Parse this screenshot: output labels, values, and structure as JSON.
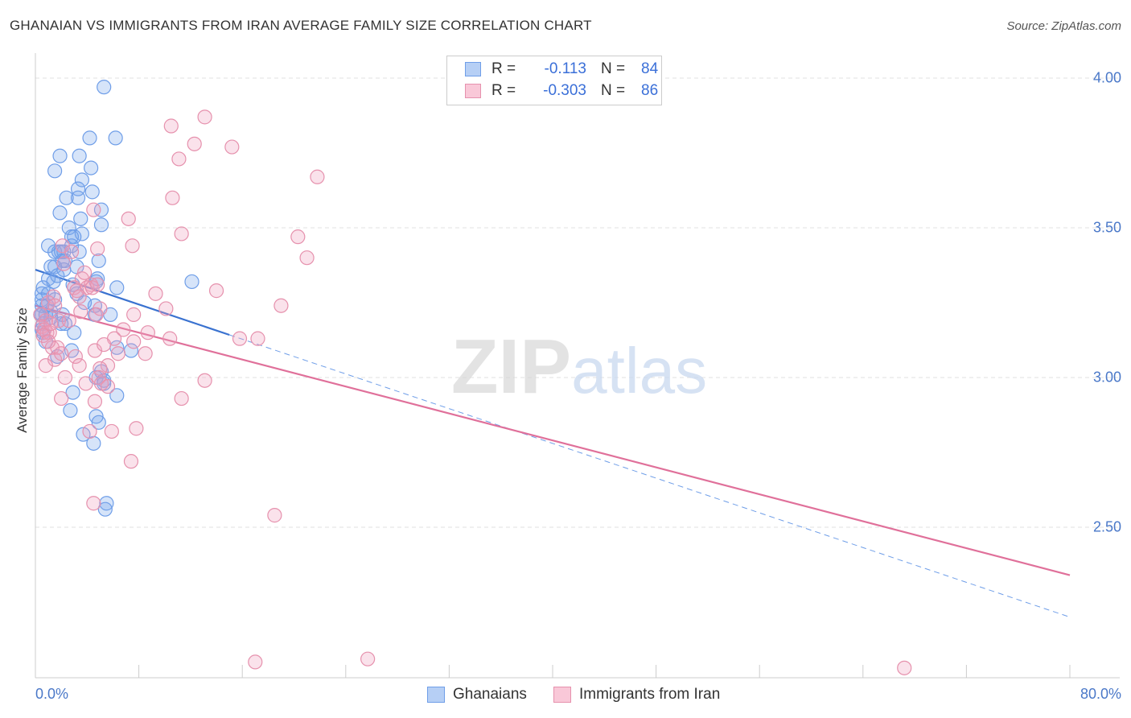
{
  "chart_data": {
    "type": "scatter",
    "title": "GHANAIAN VS IMMIGRANTS FROM IRAN AVERAGE FAMILY SIZE CORRELATION CHART",
    "source": "Source: ZipAtlas.com",
    "xlabel": "",
    "ylabel": "Average Family Size",
    "xlim": [
      0,
      80
    ],
    "ylim": [
      2.0,
      4.15
    ],
    "x_tick_labels": {
      "min": "0.0%",
      "max": "80.0%"
    },
    "y_ticks": [
      {
        "value": 4.0,
        "label": "4.00"
      },
      {
        "value": 3.5,
        "label": "3.50"
      },
      {
        "value": 3.0,
        "label": "3.00"
      },
      {
        "value": 2.5,
        "label": "2.50"
      }
    ],
    "grid": true,
    "watermark": "ZIPatlas",
    "legend": {
      "placement": "top-center",
      "entries": [
        {
          "r_label": "R =",
          "r_value": "-0.113",
          "n_label": "N =",
          "n_value": "84"
        },
        {
          "r_label": "R =",
          "r_value": "-0.303",
          "n_label": "N =",
          "n_value": "86"
        }
      ]
    },
    "series": [
      {
        "name": "Ghanaians",
        "color": "#6f9ee8",
        "fill": "rgba(120,165,235,0.30)",
        "trend": {
          "solid_x": [
            0,
            15
          ],
          "x": [
            0,
            80
          ],
          "y": [
            3.36,
            2.2
          ]
        },
        "points": [
          [
            5.3,
            3.97
          ],
          [
            4.2,
            3.8
          ],
          [
            6.2,
            3.8
          ],
          [
            1.9,
            3.74
          ],
          [
            3.4,
            3.74
          ],
          [
            1.5,
            3.69
          ],
          [
            4.3,
            3.7
          ],
          [
            3.6,
            3.66
          ],
          [
            4.4,
            3.62
          ],
          [
            3.3,
            3.63
          ],
          [
            3.3,
            3.6
          ],
          [
            2.4,
            3.6
          ],
          [
            5.1,
            3.56
          ],
          [
            1.9,
            3.55
          ],
          [
            3.5,
            3.53
          ],
          [
            5.1,
            3.51
          ],
          [
            2.6,
            3.5
          ],
          [
            3.6,
            3.48
          ],
          [
            2.8,
            3.47
          ],
          [
            3.0,
            3.47
          ],
          [
            2.8,
            3.44
          ],
          [
            1.0,
            3.44
          ],
          [
            3.4,
            3.42
          ],
          [
            1.5,
            3.42
          ],
          [
            1.8,
            3.42
          ],
          [
            2.0,
            3.42
          ],
          [
            2.2,
            3.42
          ],
          [
            2.1,
            3.39
          ],
          [
            2.3,
            3.39
          ],
          [
            4.9,
            3.39
          ],
          [
            1.2,
            3.37
          ],
          [
            1.5,
            3.37
          ],
          [
            3.2,
            3.37
          ],
          [
            2.2,
            3.36
          ],
          [
            1.0,
            3.33
          ],
          [
            1.7,
            3.34
          ],
          [
            4.8,
            3.33
          ],
          [
            1.4,
            3.32
          ],
          [
            4.7,
            3.32
          ],
          [
            12.1,
            3.32
          ],
          [
            6.3,
            3.3
          ],
          [
            0.5,
            3.28
          ],
          [
            3.2,
            3.28
          ],
          [
            0.5,
            3.26
          ],
          [
            1.5,
            3.26
          ],
          [
            0.5,
            3.24
          ],
          [
            0.9,
            3.24
          ],
          [
            4.6,
            3.24
          ],
          [
            1.2,
            3.22
          ],
          [
            0.5,
            3.21
          ],
          [
            0.8,
            3.21
          ],
          [
            0.4,
            3.21
          ],
          [
            2.1,
            3.21
          ],
          [
            1.2,
            3.2
          ],
          [
            4.6,
            3.21
          ],
          [
            5.8,
            3.21
          ],
          [
            0.6,
            3.18
          ],
          [
            2.0,
            3.18
          ],
          [
            2.3,
            3.18
          ],
          [
            0.5,
            3.16
          ],
          [
            0.6,
            3.15
          ],
          [
            3.0,
            3.15
          ],
          [
            0.8,
            3.12
          ],
          [
            6.3,
            3.1
          ],
          [
            7.4,
            3.09
          ],
          [
            2.8,
            3.09
          ],
          [
            1.7,
            3.07
          ],
          [
            5.1,
            3.02
          ],
          [
            4.7,
            3.0
          ],
          [
            5.3,
            2.99
          ],
          [
            5.3,
            2.98
          ],
          [
            6.3,
            2.94
          ],
          [
            2.9,
            2.95
          ],
          [
            2.7,
            2.89
          ],
          [
            4.7,
            2.87
          ],
          [
            4.9,
            2.85
          ],
          [
            3.7,
            2.81
          ],
          [
            4.5,
            2.78
          ],
          [
            5.5,
            2.58
          ],
          [
            5.4,
            2.56
          ],
          [
            0.6,
            3.3
          ],
          [
            2.9,
            3.31
          ],
          [
            1.0,
            3.28
          ],
          [
            3.8,
            3.25
          ]
        ]
      },
      {
        "name": "Immigrants from Iran",
        "color": "#e691ad",
        "fill": "rgba(240,160,190,0.30)",
        "trend": {
          "x": [
            0,
            80
          ],
          "y": [
            3.24,
            2.34
          ]
        },
        "points": [
          [
            13.1,
            3.87
          ],
          [
            10.5,
            3.84
          ],
          [
            12.3,
            3.78
          ],
          [
            15.2,
            3.77
          ],
          [
            11.1,
            3.73
          ],
          [
            21.8,
            3.67
          ],
          [
            10.6,
            3.6
          ],
          [
            4.5,
            3.56
          ],
          [
            7.2,
            3.53
          ],
          [
            11.3,
            3.48
          ],
          [
            20.3,
            3.47
          ],
          [
            7.5,
            3.44
          ],
          [
            2.1,
            3.44
          ],
          [
            4.8,
            3.43
          ],
          [
            2.8,
            3.42
          ],
          [
            21.0,
            3.4
          ],
          [
            2.2,
            3.38
          ],
          [
            3.6,
            3.33
          ],
          [
            4.3,
            3.31
          ],
          [
            3.0,
            3.3
          ],
          [
            3.2,
            3.29
          ],
          [
            4.0,
            3.3
          ],
          [
            4.4,
            3.3
          ],
          [
            4.8,
            3.31
          ],
          [
            14.0,
            3.29
          ],
          [
            9.3,
            3.28
          ],
          [
            1.4,
            3.27
          ],
          [
            3.4,
            3.27
          ],
          [
            1.0,
            3.25
          ],
          [
            1.5,
            3.24
          ],
          [
            19.0,
            3.24
          ],
          [
            10.1,
            3.23
          ],
          [
            5.0,
            3.23
          ],
          [
            3.5,
            3.22
          ],
          [
            7.6,
            3.21
          ],
          [
            0.4,
            3.21
          ],
          [
            0.8,
            3.19
          ],
          [
            1.8,
            3.19
          ],
          [
            2.6,
            3.19
          ],
          [
            0.5,
            3.17
          ],
          [
            0.7,
            3.16
          ],
          [
            0.9,
            3.15
          ],
          [
            1.1,
            3.15
          ],
          [
            0.6,
            3.14
          ],
          [
            8.7,
            3.15
          ],
          [
            10.4,
            3.13
          ],
          [
            15.8,
            3.13
          ],
          [
            17.2,
            3.13
          ],
          [
            1.3,
            3.1
          ],
          [
            1.7,
            3.1
          ],
          [
            6.1,
            3.13
          ],
          [
            7.6,
            3.12
          ],
          [
            8.5,
            3.08
          ],
          [
            4.6,
            3.09
          ],
          [
            3.1,
            3.07
          ],
          [
            1.5,
            3.06
          ],
          [
            0.8,
            3.04
          ],
          [
            6.4,
            3.08
          ],
          [
            3.4,
            3.04
          ],
          [
            5.6,
            3.04
          ],
          [
            5.0,
            3.03
          ],
          [
            4.9,
            3.0
          ],
          [
            2.3,
            3.0
          ],
          [
            3.9,
            2.98
          ],
          [
            5.1,
            2.98
          ],
          [
            5.6,
            2.97
          ],
          [
            13.1,
            2.99
          ],
          [
            2.0,
            2.93
          ],
          [
            11.3,
            2.93
          ],
          [
            4.6,
            2.92
          ],
          [
            7.8,
            2.83
          ],
          [
            4.2,
            2.82
          ],
          [
            5.9,
            2.82
          ],
          [
            7.4,
            2.72
          ],
          [
            4.5,
            2.58
          ],
          [
            18.5,
            2.54
          ],
          [
            17.0,
            2.05
          ],
          [
            25.7,
            2.06
          ],
          [
            67.2,
            2.03
          ],
          [
            2.0,
            3.08
          ],
          [
            1.2,
            3.18
          ],
          [
            3.8,
            3.35
          ],
          [
            4.7,
            3.21
          ],
          [
            6.8,
            3.16
          ],
          [
            1.0,
            3.12
          ],
          [
            5.3,
            3.11
          ]
        ]
      }
    ]
  }
}
